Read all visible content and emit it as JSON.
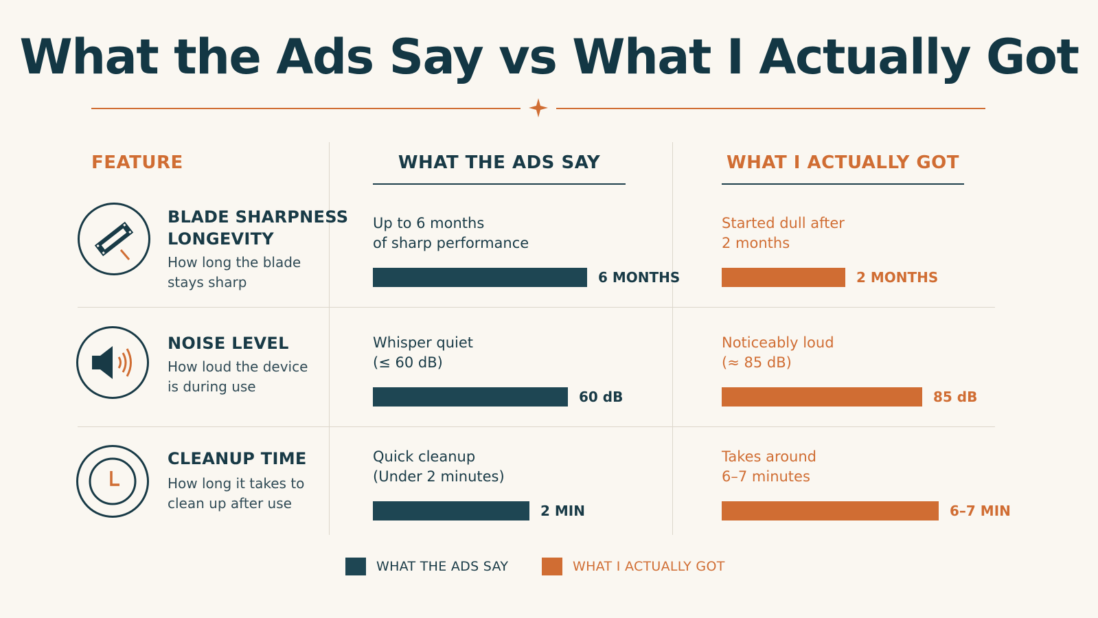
{
  "title": "What the Ads Say vs What I Actually Got",
  "colors": {
    "ads": "#1e4653",
    "actual": "#d06d33",
    "background": "#faf7f1"
  },
  "headers": {
    "feature": "FEATURE",
    "ads": "WHAT THE ADS SAY",
    "actual": "WHAT I ACTUALLY GOT"
  },
  "rows": [
    {
      "icon": "razor-blade-icon",
      "name_line1": "BLADE SHARPNESS",
      "name_line2": "LONGEVITY",
      "desc_line1": "How long the blade",
      "desc_line2": "stays sharp",
      "ads_line1": "Up to 6 months",
      "ads_line2": "of sharp performance",
      "ads_value_label": "6 MONTHS",
      "actual_line1": "Started dull after",
      "actual_line2": "2 months",
      "actual_value_label": "2 MONTHS"
    },
    {
      "icon": "speaker-icon",
      "name_line1": "NOISE LEVEL",
      "name_line2": "",
      "desc_line1": "How loud the device",
      "desc_line2": "is during use",
      "ads_line1": "Whisper quiet",
      "ads_line2": "(≤ 60 dB)",
      "ads_value_label": "60 dB",
      "actual_line1": "Noticeably loud",
      "actual_line2": "(≈ 85 dB)",
      "actual_value_label": "85 dB"
    },
    {
      "icon": "clock-icon",
      "name_line1": "CLEANUP TIME",
      "name_line2": "",
      "desc_line1": "How long it takes to",
      "desc_line2": "clean up after use",
      "ads_line1": "Quick cleanup",
      "ads_line2": "(Under 2 minutes)",
      "ads_value_label": "2 MIN",
      "actual_line1": "Takes around",
      "actual_line2": "6–7 minutes",
      "actual_value_label": "6–7 MIN"
    }
  ],
  "legend": {
    "ads": "WHAT THE ADS SAY",
    "actual": "WHAT I ACTUALLY GOT"
  },
  "chart_data": {
    "type": "bar",
    "categories": [
      "BLADE SHARPNESS LONGEVITY",
      "NOISE LEVEL",
      "CLEANUP TIME"
    ],
    "series": [
      {
        "name": "WHAT THE ADS SAY",
        "values": [
          6,
          60,
          2
        ],
        "units": [
          "MONTHS",
          "dB",
          "MIN"
        ]
      },
      {
        "name": "WHAT I ACTUALLY GOT",
        "values": [
          2,
          85,
          6.5
        ],
        "units": [
          "MONTHS",
          "dB",
          "MIN"
        ]
      }
    ],
    "bar_fraction": {
      "ads": [
        0.78,
        0.71,
        0.57
      ],
      "actual": [
        0.45,
        0.73,
        0.79
      ]
    },
    "legend_position": "bottom-center"
  }
}
